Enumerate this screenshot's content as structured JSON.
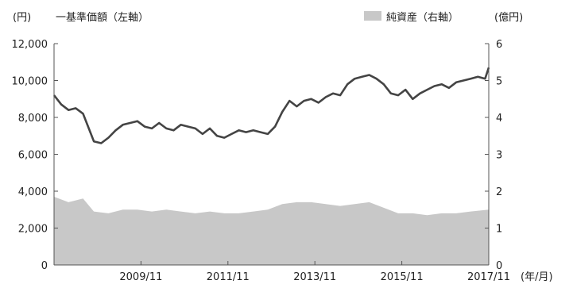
{
  "chart_data": {
    "type": "line",
    "title": "",
    "legend": {
      "left_label": "一基準価額（左軸）",
      "right_label": "純資産（右軸）",
      "placement": "top"
    },
    "left_axis": {
      "unit_label": "(円)",
      "ticks": [
        "12,000",
        "10,000",
        "8,000",
        "6,000",
        "4,000",
        "2,000",
        "0"
      ],
      "ylim": [
        0,
        12000
      ]
    },
    "right_axis": {
      "unit_label": "(億円)",
      "ticks": [
        "6",
        "5",
        "4",
        "3",
        "2",
        "1",
        "0"
      ],
      "ylim": [
        0,
        6
      ]
    },
    "x_axis": {
      "unit_label": "(年/月)",
      "ticks": [
        "2009/11",
        "2011/11",
        "2013/11",
        "2015/11",
        "2017/11"
      ],
      "xlim": [
        "2007/11",
        "2017/11"
      ]
    },
    "grid": false,
    "colors": {
      "line": "#444444",
      "area": "#c8c8c8",
      "axis": "#555555"
    },
    "series": [
      {
        "name": "一基準価額（左軸）",
        "axis": "left",
        "kind": "line",
        "x": [
          "2007/11",
          "2008/01",
          "2008/03",
          "2008/05",
          "2008/07",
          "2008/09",
          "2008/10",
          "2008/12",
          "2009/02",
          "2009/04",
          "2009/06",
          "2009/08",
          "2009/10",
          "2009/12",
          "2010/02",
          "2010/04",
          "2010/06",
          "2010/08",
          "2010/10",
          "2010/12",
          "2011/02",
          "2011/04",
          "2011/06",
          "2011/08",
          "2011/10",
          "2011/12",
          "2012/02",
          "2012/04",
          "2012/06",
          "2012/08",
          "2012/10",
          "2012/12",
          "2013/02",
          "2013/04",
          "2013/06",
          "2013/08",
          "2013/10",
          "2013/12",
          "2014/02",
          "2014/04",
          "2014/06",
          "2014/08",
          "2014/10",
          "2014/12",
          "2015/02",
          "2015/04",
          "2015/06",
          "2015/08",
          "2015/10",
          "2015/12",
          "2016/02",
          "2016/04",
          "2016/06",
          "2016/08",
          "2016/10",
          "2016/12",
          "2017/02",
          "2017/04",
          "2017/06",
          "2017/08",
          "2017/10",
          "2017/11"
        ],
        "values": [
          9200,
          8700,
          8400,
          8500,
          8200,
          7200,
          6700,
          6600,
          6900,
          7300,
          7600,
          7700,
          7800,
          7500,
          7400,
          7700,
          7400,
          7300,
          7600,
          7500,
          7400,
          7100,
          7400,
          7000,
          6900,
          7100,
          7300,
          7200,
          7300,
          7200,
          7100,
          7500,
          8300,
          8900,
          8600,
          8900,
          9000,
          8800,
          9100,
          9300,
          9200,
          9800,
          10100,
          10200,
          10300,
          10100,
          9800,
          9300,
          9200,
          9500,
          9000,
          9300,
          9500,
          9700,
          9800,
          9600,
          9900,
          10000,
          10100,
          10200,
          10100,
          10700
        ]
      },
      {
        "name": "純資産（右軸）",
        "axis": "right",
        "kind": "area",
        "x": [
          "2007/11",
          "2008/03",
          "2008/07",
          "2008/10",
          "2009/02",
          "2009/06",
          "2009/10",
          "2010/02",
          "2010/06",
          "2010/10",
          "2011/02",
          "2011/06",
          "2011/10",
          "2012/02",
          "2012/06",
          "2012/10",
          "2013/02",
          "2013/06",
          "2013/10",
          "2014/02",
          "2014/06",
          "2014/10",
          "2015/02",
          "2015/06",
          "2015/10",
          "2016/02",
          "2016/06",
          "2016/10",
          "2017/02",
          "2017/06",
          "2017/11"
        ],
        "values": [
          1.85,
          1.7,
          1.8,
          1.45,
          1.4,
          1.5,
          1.5,
          1.45,
          1.5,
          1.45,
          1.4,
          1.45,
          1.4,
          1.4,
          1.45,
          1.5,
          1.65,
          1.7,
          1.7,
          1.65,
          1.6,
          1.65,
          1.7,
          1.55,
          1.4,
          1.4,
          1.35,
          1.4,
          1.4,
          1.45,
          1.5
        ]
      }
    ]
  }
}
